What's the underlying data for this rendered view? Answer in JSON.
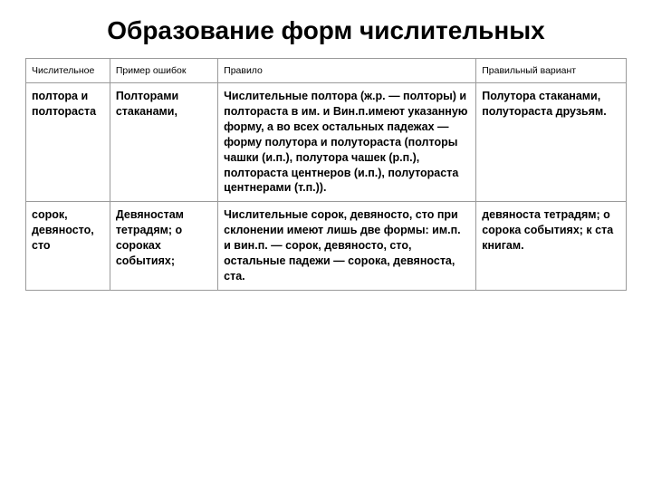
{
  "title": "Образование форм числительных",
  "table": {
    "columns": [
      "Числительное",
      "Пример ошибок",
      "Правило",
      "Правильный вариант"
    ],
    "rows": [
      {
        "numeral": "полтора и полтораста",
        "mistake": "Полторами стаканами,",
        "rule": "Числительные полтора (ж.р. — полторы) и полтораста в им. и Вин.п.имеют указанную форму, а во всех остальных падежах — форму полутора и полутораста (полторы чашки (и.п.), полутора чашек (р.п.), полтораста центнеров (и.п.), полутораста центнерами (т.п.)).",
        "correct": "Полутора стаканами, полутораста друзьям."
      },
      {
        "numeral": "сорок, девяносто, сто",
        "mistake": "Девяностам тетрадям; о сороках событиях;",
        "rule": "Числительные сорок, девяносто, сто при склонении имеют лишь две формы: им.п. и вин.п. — сорок, девяносто, сто, остальные падежи — сорока, девяноста, ста.",
        "correct": "девяноста тетрадям; о сорока событиях; к ста книгам."
      }
    ]
  }
}
